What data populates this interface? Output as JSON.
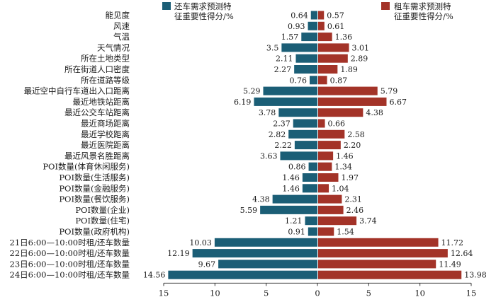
{
  "chart_data": {
    "type": "bar",
    "orientation": "horizontal-diverging",
    "categories": [
      "能见度",
      "风速",
      "气温",
      "天气情况",
      "所在土地类型",
      "所在街道人口密度",
      "所在道路等级",
      "最近空中自行车道出入口距离",
      "最近地铁站距离",
      "最近公交车站距离",
      "最近商场距离",
      "最近学校距离",
      "最近医院距离",
      "最近风景名胜距离",
      "POI数量(体育休闲服务)",
      "POI数量(生活服务)",
      "POI数量(金融服务)",
      "POI数量(餐饮服务)",
      "POI数量(企业)",
      "POI数量(住宅)",
      "POI数量(政府机构)",
      "21日6:00—10:00时租/还车数量",
      "22日6:00—10:00时租/还车数量",
      "23日6:00—10:00时租/还车数量",
      "24日6:00—10:00时租/还车数量"
    ],
    "series": [
      {
        "name": "还车需求预测特征重要性得分/%",
        "side": "left",
        "color": "#1b5e76",
        "values": [
          0.64,
          0.93,
          1.57,
          3.5,
          2.11,
          2.27,
          0.76,
          5.29,
          6.19,
          3.78,
          2.37,
          2.82,
          2.22,
          3.63,
          0.86,
          1.46,
          1.46,
          4.38,
          5.59,
          1.21,
          0.91,
          10.03,
          12.19,
          9.67,
          14.56
        ],
        "labels": [
          "0.64",
          "0.93",
          "1.57",
          "3.5",
          "2.11",
          "2.27",
          "0.76",
          "5.29",
          "6.19",
          "3.78",
          "2.37",
          "2.82",
          "2.22",
          "3.63",
          "0.86",
          "1.46",
          "1.46",
          "4.38",
          "5.59",
          "1.21",
          "0.91",
          "10.03",
          "12.19",
          "9.67",
          "14.56"
        ]
      },
      {
        "name": "租车需求预测特征重要性得分/%",
        "side": "right",
        "color": "#a33328",
        "values": [
          0.57,
          0.61,
          1.36,
          3.01,
          2.89,
          1.89,
          0.87,
          5.79,
          6.67,
          4.38,
          0.66,
          2.58,
          2.2,
          1.46,
          1.34,
          1.97,
          1.04,
          2.31,
          2.46,
          3.74,
          1.54,
          11.72,
          12.64,
          11.49,
          13.98
        ],
        "labels": [
          "0.57",
          "0.61",
          "1.36",
          "3.01",
          "2.89",
          "1.89",
          "0.87",
          "5.79",
          "6.67",
          "4.38",
          "0.66",
          "2.58",
          "2.20",
          "1.46",
          "1.34",
          "1.97",
          "1.04",
          "2.31",
          "2.46",
          "3.74",
          "1.54",
          "11.72",
          "12.64",
          "11.49",
          "13.98"
        ]
      }
    ],
    "x_ticks": [
      "15",
      "10",
      "5",
      "0",
      "5",
      "10",
      "15"
    ],
    "xlim": [
      -15,
      15
    ],
    "legend": [
      {
        "line1": "还车需求预测特",
        "line2": "征重要性得分/%",
        "color": "#1b5e76",
        "placement": "top-left"
      },
      {
        "line1": "租车需求预测特",
        "line2": "征重要性得分/%",
        "color": "#a33328",
        "placement": "top-right"
      }
    ],
    "grid": false
  }
}
